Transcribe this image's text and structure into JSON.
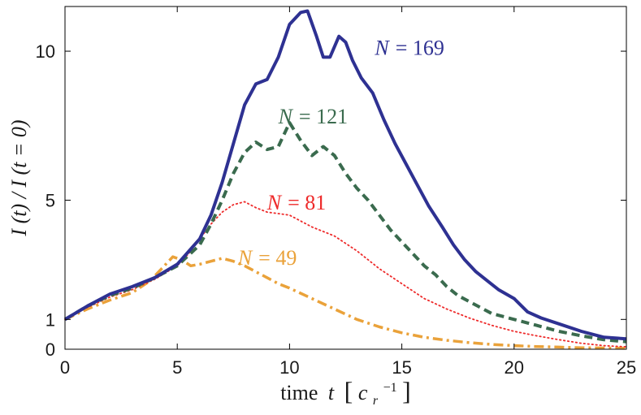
{
  "chart_data": {
    "type": "line",
    "title": "",
    "xlabel": "time",
    "xlabel_var": "t",
    "xlabel_unit": "[c_r^-1]",
    "xlabel_bracket_open": "[",
    "xlabel_unit_base": "c",
    "xlabel_unit_sub": "r",
    "xlabel_unit_sup": "−1",
    "xlabel_bracket_close": "]",
    "ylabel": "I (t) / I (t = 0)",
    "xlim": [
      0,
      25
    ],
    "ylim": [
      0,
      11.5
    ],
    "xticks": [
      0,
      5,
      10,
      15,
      20,
      25
    ],
    "xtick_labels": [
      "0",
      "5",
      "10",
      "15",
      "20",
      "25"
    ],
    "yticks": [
      0,
      1,
      5,
      10
    ],
    "ytick_labels": [
      "0",
      "1",
      "5",
      "10"
    ],
    "grid": false,
    "series": [
      {
        "name": "N = 169",
        "label_var": "N",
        "label_eq": "= 169",
        "color": "#2e3192",
        "style": "solid",
        "label_at": [
          13.8,
          10.1
        ],
        "x": [
          0,
          1,
          2,
          3,
          4,
          5,
          6,
          6.5,
          7,
          7.5,
          8,
          8.5,
          9,
          9.5,
          10,
          10.5,
          10.8,
          11.2,
          11.5,
          11.8,
          12.2,
          12.5,
          12.8,
          13.2,
          13.7,
          14.2,
          14.7,
          15.2,
          15.7,
          16.2,
          16.8,
          17.3,
          17.8,
          18.3,
          18.8,
          19.3,
          20,
          20.6,
          21.2,
          22,
          23,
          24,
          25
        ],
        "y": [
          1.0,
          1.45,
          1.85,
          2.1,
          2.4,
          2.85,
          3.7,
          4.5,
          5.6,
          6.9,
          8.2,
          8.9,
          9.05,
          9.8,
          10.9,
          11.3,
          11.35,
          10.5,
          9.8,
          9.8,
          10.5,
          10.3,
          9.7,
          9.1,
          8.6,
          7.7,
          6.9,
          6.2,
          5.5,
          4.8,
          4.1,
          3.5,
          3.0,
          2.6,
          2.3,
          2.0,
          1.7,
          1.25,
          1.05,
          0.85,
          0.6,
          0.4,
          0.35
        ]
      },
      {
        "name": "N = 121",
        "label_var": "N",
        "label_eq": "= 121",
        "color": "#3a6b4e",
        "style": "dashed",
        "label_at": [
          9.5,
          7.8
        ],
        "x": [
          0,
          1,
          2,
          3,
          4,
          5,
          6,
          6.5,
          7,
          7.5,
          8,
          8.5,
          9,
          9.5,
          10,
          10.5,
          11,
          11.5,
          12,
          12.5,
          13,
          13.5,
          14,
          14.5,
          15,
          15.5,
          16,
          16.5,
          17,
          17.5,
          18,
          18.5,
          19,
          20,
          21,
          22,
          23,
          24,
          25
        ],
        "y": [
          1.0,
          1.45,
          1.8,
          2.05,
          2.4,
          2.8,
          3.5,
          4.2,
          5.0,
          5.9,
          6.6,
          6.95,
          6.7,
          6.8,
          7.6,
          7.0,
          6.5,
          6.8,
          6.5,
          5.9,
          5.4,
          5.0,
          4.5,
          4.0,
          3.6,
          3.2,
          2.8,
          2.5,
          2.1,
          1.8,
          1.6,
          1.4,
          1.2,
          1.0,
          0.8,
          0.6,
          0.45,
          0.32,
          0.25
        ]
      },
      {
        "name": "N = 81",
        "label_var": "N",
        "label_eq": "= 81",
        "color": "#ee2a2a",
        "style": "dotted",
        "label_at": [
          9.0,
          4.9
        ],
        "x": [
          0,
          1,
          2,
          3,
          4,
          5,
          5.5,
          6,
          6.5,
          7,
          7.5,
          8,
          8.5,
          9,
          9.5,
          10,
          10.5,
          11,
          12,
          13,
          14,
          15,
          16,
          17,
          18,
          19,
          20,
          21,
          22,
          23,
          24,
          25
        ],
        "y": [
          1.0,
          1.4,
          1.75,
          2.0,
          2.35,
          2.8,
          3.2,
          3.7,
          4.2,
          4.6,
          4.85,
          4.95,
          4.75,
          4.6,
          4.55,
          4.5,
          4.3,
          4.1,
          3.8,
          3.3,
          2.7,
          2.2,
          1.7,
          1.35,
          1.05,
          0.8,
          0.6,
          0.45,
          0.32,
          0.2,
          0.12,
          0.08
        ]
      },
      {
        "name": "N = 49",
        "label_var": "N",
        "label_eq": "= 49",
        "color": "#eaa23a",
        "style": "dashdot",
        "label_at": [
          7.7,
          3.05
        ],
        "x": [
          0,
          1,
          2,
          3,
          3.8,
          4.3,
          4.8,
          5.2,
          5.6,
          6,
          6.5,
          7,
          7.5,
          8,
          8.5,
          9,
          9.5,
          10,
          11,
          12,
          13,
          14,
          15,
          16,
          17,
          18,
          19,
          20,
          21,
          22,
          23,
          24,
          25
        ],
        "y": [
          1.0,
          1.35,
          1.65,
          1.9,
          2.3,
          2.7,
          3.1,
          3.0,
          2.8,
          2.85,
          2.95,
          3.05,
          2.95,
          2.8,
          2.6,
          2.4,
          2.2,
          2.05,
          1.7,
          1.35,
          1.0,
          0.75,
          0.55,
          0.4,
          0.3,
          0.22,
          0.16,
          0.12,
          0.09,
          0.07,
          0.05,
          0.04,
          0.03
        ]
      }
    ]
  }
}
